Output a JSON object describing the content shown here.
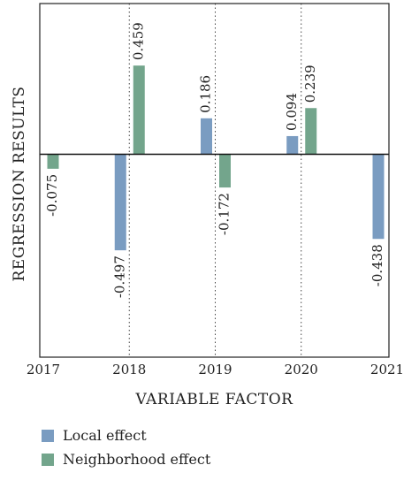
{
  "chart_data": {
    "type": "bar",
    "categories": [
      "2017",
      "2018",
      "2019",
      "2020",
      "2021"
    ],
    "series": [
      {
        "name": "Local effect",
        "color": "#7a9cc1",
        "values": [
          null,
          -0.497,
          0.186,
          0.094,
          -0.438
        ]
      },
      {
        "name": "Neighborhood effect",
        "color": "#73a58c",
        "values": [
          -0.075,
          0.459,
          -0.172,
          0.239,
          null
        ]
      }
    ],
    "data_labels": {
      "Local effect": [
        "",
        "-0.497",
        "0.186",
        "0.094",
        "-0.438"
      ],
      "Neighborhood effect": [
        "-0.075",
        "0.459",
        "-0.172",
        "0.239",
        ""
      ]
    },
    "xlabel": "VARIABLE FACTOR",
    "ylabel": "REGRESSION RESULTS",
    "ylim": [
      -1.05,
      0.78
    ],
    "grid": "dotted vertical lines at 2018, 2019, 2020",
    "legend_position": "bottom-left"
  }
}
